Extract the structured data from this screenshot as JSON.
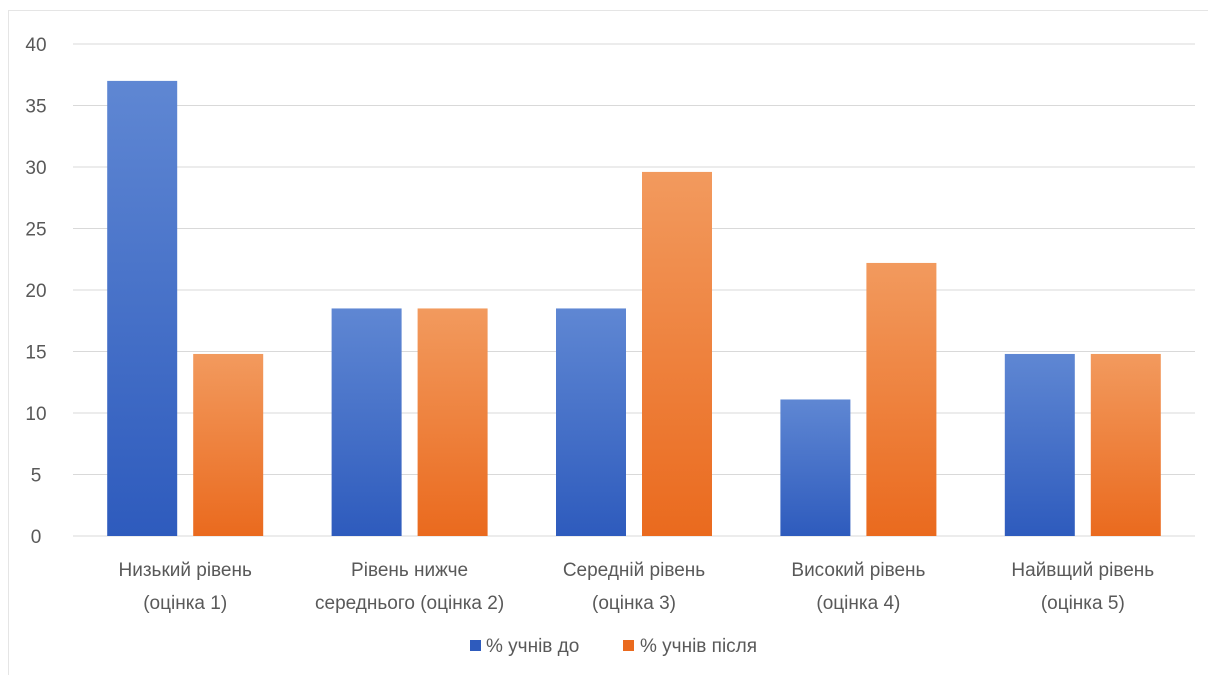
{
  "colors": {
    "series_before_top": "#5f87d3",
    "series_before_bottom": "#2e5bbd",
    "series_after_top": "#f29a5e",
    "series_after_bottom": "#ea6a1e",
    "grid": "#d9d9d9",
    "text": "#595959"
  },
  "chart_data": {
    "type": "bar",
    "categories": [
      [
        "Низький рівень",
        "(оцінка 1)"
      ],
      [
        "Рівень нижче",
        "середнього (оцінка 2)"
      ],
      [
        "Середній рівень",
        "(оцінка 3)"
      ],
      [
        "Високий рівень",
        "(оцінка 4)"
      ],
      [
        "Найвщий рівень",
        "(оцінка 5)"
      ]
    ],
    "series": [
      {
        "name": "% учнів до",
        "values": [
          37,
          18.5,
          18.5,
          11.1,
          14.8
        ]
      },
      {
        "name": "% учнів після",
        "values": [
          14.8,
          18.5,
          29.6,
          22.2,
          14.8
        ]
      }
    ],
    "ylim": [
      0,
      40
    ],
    "yticks": [
      "0",
      "5",
      "10",
      "15",
      "20",
      "25",
      "30",
      "35",
      "40"
    ],
    "grid": true,
    "legend": "bottom"
  }
}
